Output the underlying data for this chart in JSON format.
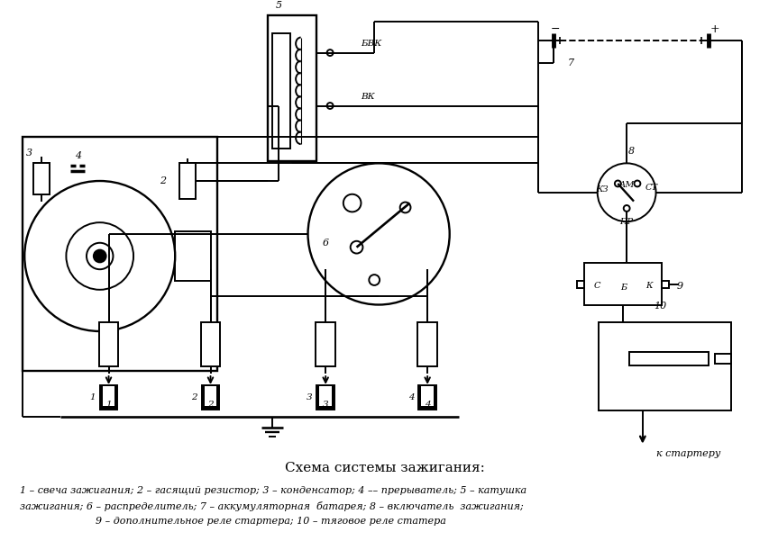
{
  "title": "Схема системы зажигания:",
  "caption_line1": "1 – свеча зажигания; 2 – гасящий резистор; 3 – конденсатор; 4 –– прерыватель; 5 – катушка",
  "caption_line2": "зажигания; 6 – распределитель; 7 – аккумуляторная  батарея; 8 – включатель  зажигания;",
  "caption_line3": "9 – дополнительное реле стартера; 10 – тяговое реле статера",
  "bg_color": "#ffffff",
  "fg_color": "#000000",
  "lw": 1.4
}
